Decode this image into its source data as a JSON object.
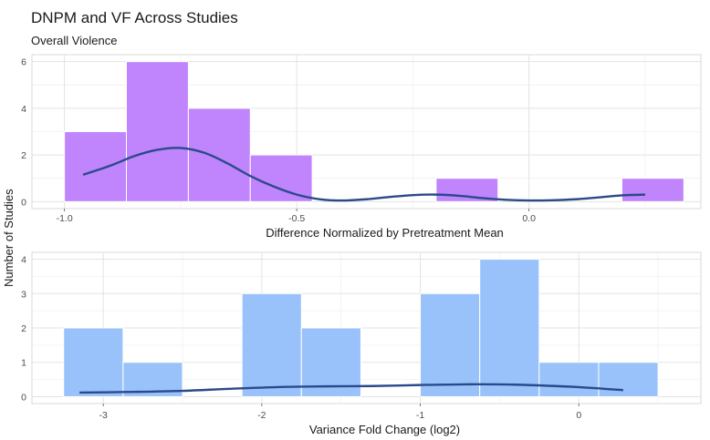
{
  "title": "DNPM and VF Across Studies",
  "subtitle": "Overall Violence",
  "ylabel": "Number of Studies",
  "chart_data": [
    {
      "type": "bar",
      "name": "dnpm",
      "bar_color": "#c084fc",
      "curve_color": "#2b4a8a",
      "xlabel": "Difference Normalized by Pretreatment Mean",
      "xlim": [
        -1.07,
        0.37
      ],
      "ylim": [
        -0.3,
        6.3
      ],
      "x_ticks": [
        -1.0,
        -0.5,
        0.0
      ],
      "x_tick_labels": [
        "-1.0",
        "-0.5",
        "0.0"
      ],
      "y_ticks": [
        0,
        2,
        4,
        6
      ],
      "bins": [
        {
          "x0": -1.0,
          "x1": -0.8667,
          "count": 3
        },
        {
          "x0": -0.8667,
          "x1": -0.7333,
          "count": 6
        },
        {
          "x0": -0.7333,
          "x1": -0.6,
          "count": 4
        },
        {
          "x0": -0.6,
          "x1": -0.4667,
          "count": 2
        },
        {
          "x0": -0.4667,
          "x1": -0.3333,
          "count": 0
        },
        {
          "x0": -0.3333,
          "x1": -0.2,
          "count": 0
        },
        {
          "x0": -0.2,
          "x1": -0.0667,
          "count": 1
        },
        {
          "x0": -0.0667,
          "x1": 0.0667,
          "count": 0
        },
        {
          "x0": 0.0667,
          "x1": 0.2,
          "count": 0
        },
        {
          "x0": 0.2,
          "x1": 0.3333,
          "count": 1
        }
      ],
      "density_curve": {
        "x": [
          -0.96,
          -0.9,
          -0.85,
          -0.8,
          -0.75,
          -0.7,
          -0.65,
          -0.6,
          -0.55,
          -0.5,
          -0.45,
          -0.4,
          -0.35,
          -0.3,
          -0.25,
          -0.2,
          -0.15,
          -0.1,
          -0.05,
          0.0,
          0.05,
          0.1,
          0.15,
          0.2,
          0.25
        ],
        "y": [
          1.15,
          1.55,
          1.95,
          2.22,
          2.3,
          2.1,
          1.65,
          1.1,
          0.65,
          0.3,
          0.1,
          0.05,
          0.1,
          0.2,
          0.28,
          0.3,
          0.25,
          0.15,
          0.08,
          0.05,
          0.06,
          0.1,
          0.18,
          0.27,
          0.3
        ]
      }
    },
    {
      "type": "bar",
      "name": "vf",
      "bar_color": "#99c2fa",
      "curve_color": "#2b4a8a",
      "xlabel": "Variance Fold Change (log2)",
      "xlim": [
        -3.45,
        0.77
      ],
      "ylim": [
        -0.2,
        4.2
      ],
      "x_ticks": [
        -3,
        -2,
        -1,
        0
      ],
      "x_tick_labels": [
        "-3",
        "-2",
        "-1",
        "0"
      ],
      "y_ticks": [
        0,
        1,
        2,
        3,
        4
      ],
      "bins": [
        {
          "x0": -3.25,
          "x1": -2.875,
          "count": 2
        },
        {
          "x0": -2.875,
          "x1": -2.5,
          "count": 1
        },
        {
          "x0": -2.5,
          "x1": -2.125,
          "count": 0
        },
        {
          "x0": -2.125,
          "x1": -1.75,
          "count": 3
        },
        {
          "x0": -1.75,
          "x1": -1.375,
          "count": 2
        },
        {
          "x0": -1.375,
          "x1": -1.0,
          "count": 0
        },
        {
          "x0": -1.0,
          "x1": -0.625,
          "count": 3
        },
        {
          "x0": -0.625,
          "x1": -0.25,
          "count": 4
        },
        {
          "x0": -0.25,
          "x1": 0.125,
          "count": 1
        },
        {
          "x0": 0.125,
          "x1": 0.5,
          "count": 1
        }
      ],
      "density_curve": {
        "x": [
          -3.15,
          -2.8,
          -2.5,
          -2.2,
          -1.9,
          -1.6,
          -1.3,
          -1.0,
          -0.7,
          -0.4,
          -0.1,
          0.1,
          0.28
        ],
        "y": [
          0.12,
          0.14,
          0.17,
          0.23,
          0.28,
          0.3,
          0.31,
          0.34,
          0.36,
          0.35,
          0.3,
          0.25,
          0.19
        ]
      }
    }
  ]
}
